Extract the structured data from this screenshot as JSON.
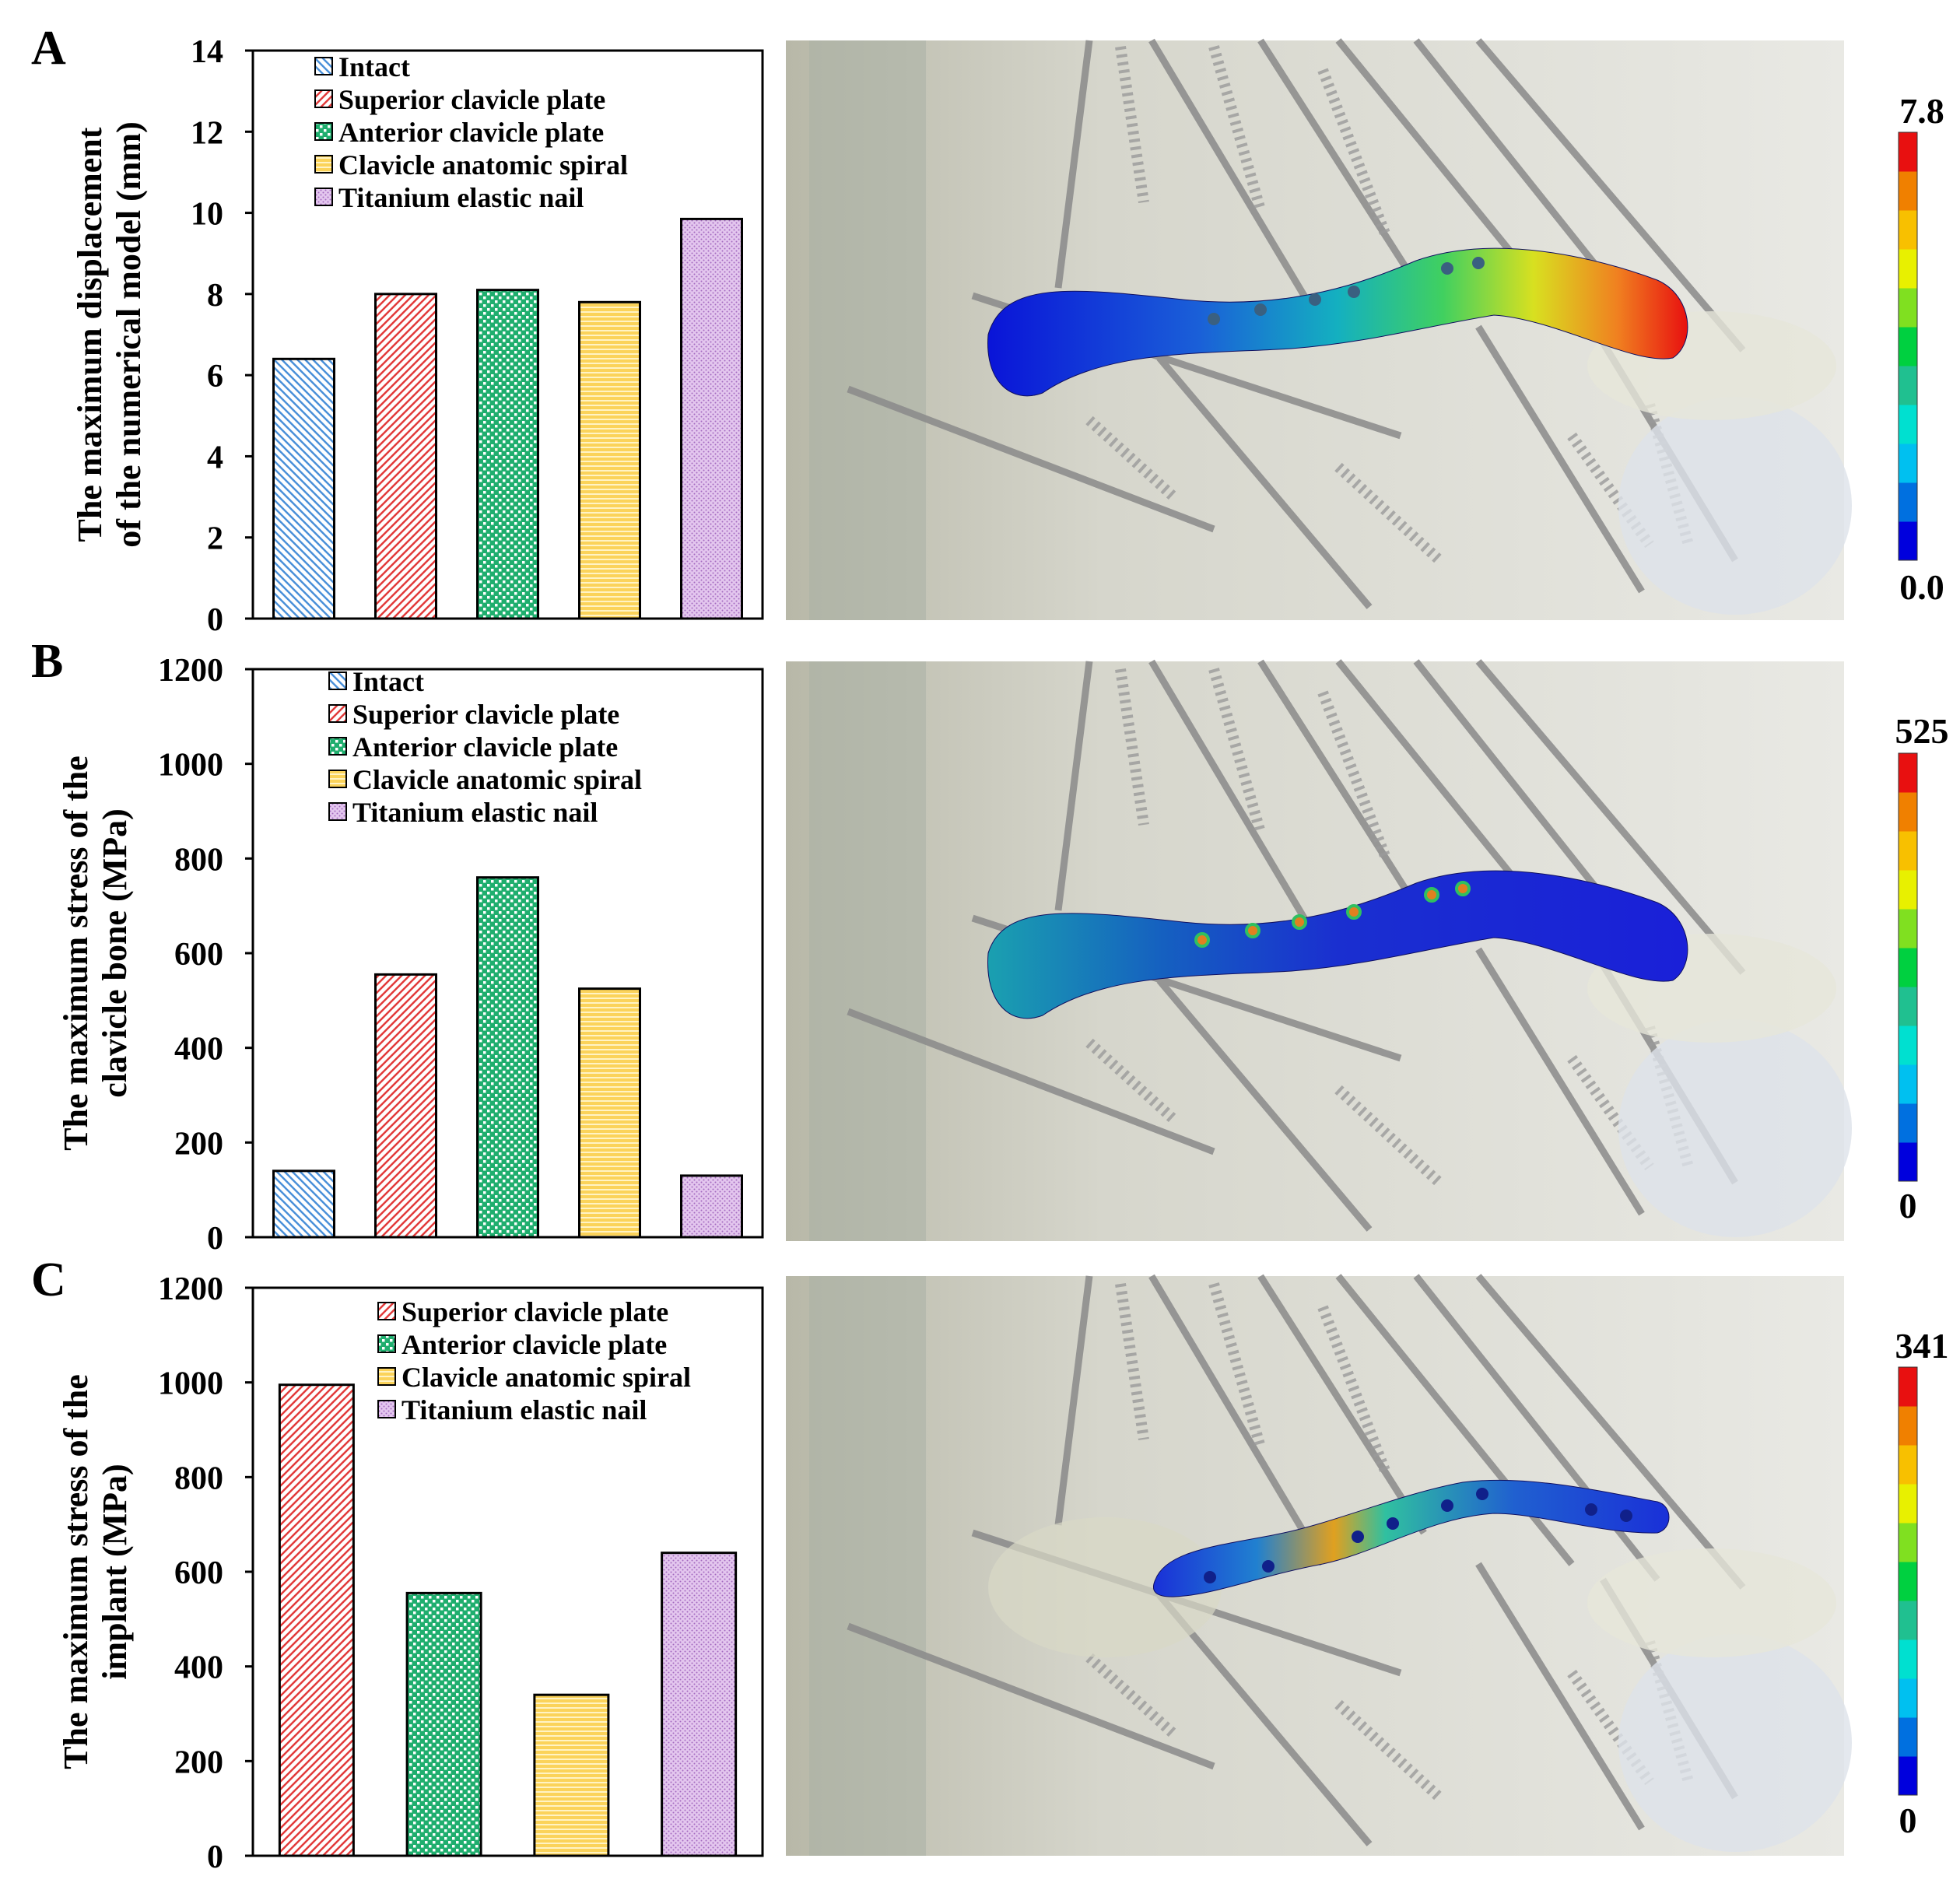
{
  "figure": {
    "panels": [
      {
        "letter": "A",
        "colorbar_max": "7.8",
        "colorbar_min": "0.0",
        "fem_view": "clavicle displacement contour"
      },
      {
        "letter": "B",
        "colorbar_max": "525",
        "colorbar_min": "0",
        "fem_view": "clavicle bone stress contour"
      },
      {
        "letter": "C",
        "colorbar_max": "341",
        "colorbar_min": "0",
        "fem_view": "implant stress contour"
      }
    ],
    "colorbar_colors": [
      "#0000dd",
      "#0070e0",
      "#00c0f0",
      "#00e0d0",
      "#20c090",
      "#00d040",
      "#80e020",
      "#e8f000",
      "#f8c000",
      "#f08000",
      "#e81010"
    ]
  },
  "chart_data": [
    {
      "type": "bar",
      "panel": "A",
      "title": "",
      "xlabel": "",
      "ylabel_lines": [
        "The maximum displacement",
        "of the numerical model  (mm)"
      ],
      "ylim": [
        0,
        14
      ],
      "yticks": [
        0,
        2,
        4,
        6,
        8,
        10,
        12,
        14
      ],
      "categories": [
        "Intact",
        "Superior clavicle plate",
        "Anterior clavicle plate",
        "Clavicle anatomic spiral",
        "Titanium elastic nail"
      ],
      "values": [
        6.4,
        8.0,
        8.1,
        7.8,
        9.85
      ],
      "legend": [
        "Intact",
        "Superior clavicle plate",
        "Anterior clavicle plate",
        "Clavicle anatomic spiral",
        "Titanium elastic nail"
      ],
      "legend_position": "top-left"
    },
    {
      "type": "bar",
      "panel": "B",
      "title": "",
      "xlabel": "",
      "ylabel_lines": [
        "The maximum stress of the",
        "clavicle bone (MPa)"
      ],
      "ylim": [
        0,
        1200
      ],
      "yticks": [
        0,
        200,
        400,
        600,
        800,
        1000,
        1200
      ],
      "categories": [
        "Intact",
        "Superior clavicle plate",
        "Anterior clavicle plate",
        "Clavicle anatomic spiral",
        "Titanium elastic nail"
      ],
      "values": [
        140,
        555,
        760,
        525,
        130
      ],
      "legend": [
        "Intact",
        "Superior clavicle plate",
        "Anterior clavicle plate",
        "Clavicle anatomic spiral",
        "Titanium elastic nail"
      ],
      "legend_position": "top-left"
    },
    {
      "type": "bar",
      "panel": "C",
      "title": "",
      "xlabel": "",
      "ylabel_lines": [
        "The maximum stress of the",
        "implant (MPa)"
      ],
      "ylim": [
        0,
        1200
      ],
      "yticks": [
        0,
        200,
        400,
        600,
        800,
        1000,
        1200
      ],
      "categories": [
        "Superior clavicle plate",
        "Anterior clavicle plate",
        "Clavicle anatomic spiral",
        "Titanium elastic nail"
      ],
      "values": [
        995,
        555,
        340,
        640
      ],
      "legend": [
        "Superior clavicle plate",
        "Anterior clavicle plate",
        "Clavicle anatomic spiral",
        "Titanium elastic nail"
      ],
      "legend_position": "top-right"
    }
  ]
}
